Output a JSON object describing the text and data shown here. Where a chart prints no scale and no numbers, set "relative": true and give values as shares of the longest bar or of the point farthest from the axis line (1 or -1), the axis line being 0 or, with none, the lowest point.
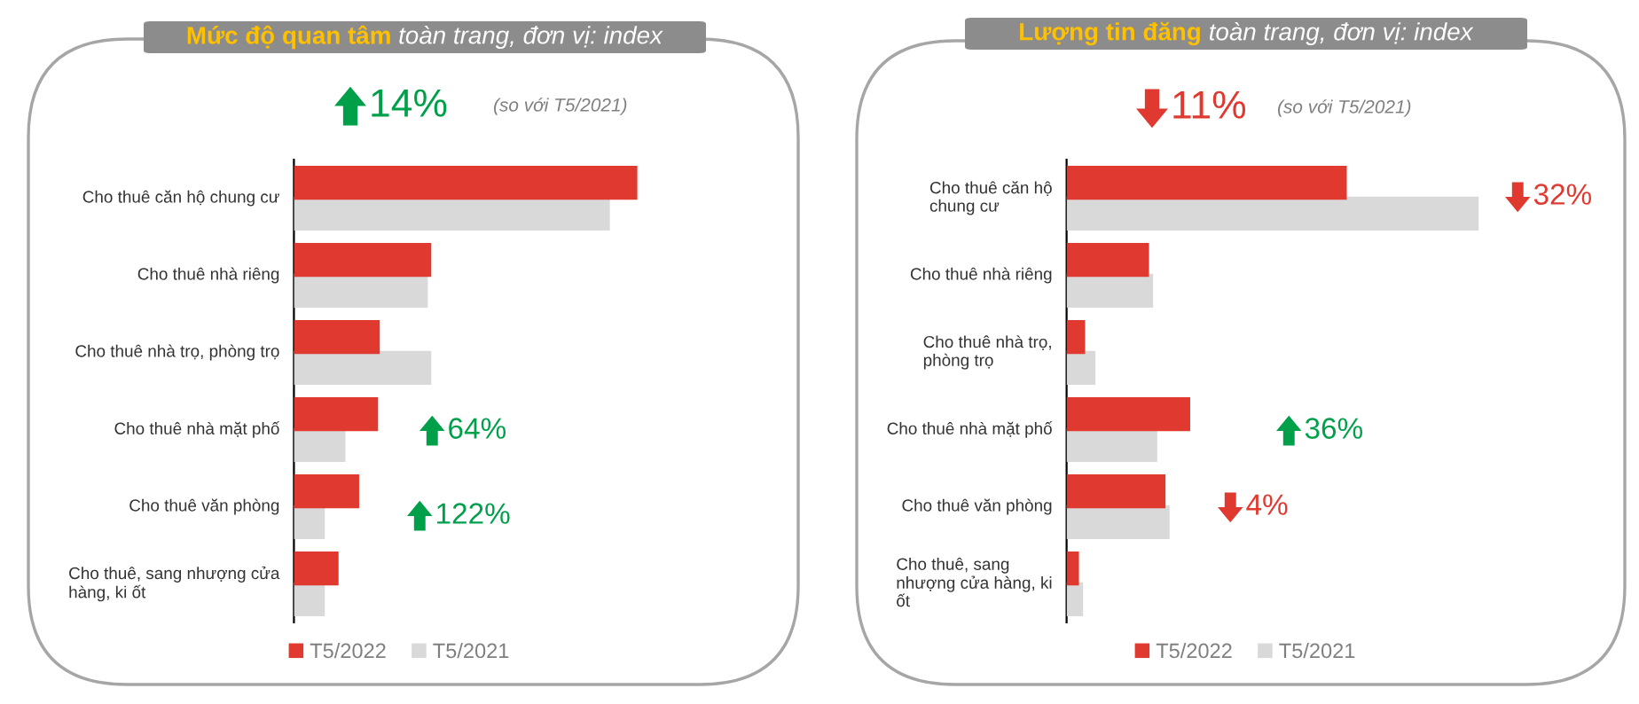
{
  "chart_data": [
    {
      "type": "bar",
      "orientation": "horizontal",
      "relative": true,
      "title": "Mức độ quan tâm",
      "subtitle": "toàn trang, đơn vị: index",
      "categories": [
        "Cho thuê căn hộ chung cư",
        "Cho thuê nhà riêng",
        "Cho thuê nhà trọ, phòng trọ",
        "Cho thuê nhà mặt phố",
        "Cho thuê văn phòng",
        "Cho thuê, sang nhượng cửa hàng, ki ốt"
      ],
      "series": [
        {
          "name": "T5/2022",
          "color": "#e03a30",
          "values": [
            1.0,
            0.4,
            0.25,
            0.245,
            0.19,
            0.13
          ]
        },
        {
          "name": "T5/2021",
          "color": "#d9d9d9",
          "values": [
            0.92,
            0.39,
            0.4,
            0.15,
            0.09,
            0.09
          ]
        }
      ],
      "annotations": [
        "14%",
        "(so với T5/2021)",
        "64%",
        "122%"
      ],
      "legend": "bottom"
    },
    {
      "type": "bar",
      "orientation": "horizontal",
      "relative": true,
      "title": "Lượng tin đăng",
      "subtitle": "toàn trang, đơn vị: index",
      "categories": [
        "Cho thuê căn hộ chung cư",
        "Cho thuê nhà riêng",
        "Cho thuê nhà trọ, phòng trọ",
        "Cho thuê nhà mặt phố",
        "Cho thuê văn phòng",
        "Cho thuê, sang nhượng cửa hàng, ki ốt"
      ],
      "series": [
        {
          "name": "T5/2022",
          "color": "#e03a30",
          "values": [
            0.68,
            0.2,
            0.045,
            0.3,
            0.24,
            0.03
          ]
        },
        {
          "name": "T5/2021",
          "color": "#d9d9d9",
          "values": [
            1.0,
            0.21,
            0.07,
            0.22,
            0.25,
            0.04
          ]
        }
      ],
      "annotations": [
        "11%",
        "(so với T5/2021)",
        "32%",
        "36%",
        "4%"
      ],
      "legend": "bottom"
    }
  ]
}
